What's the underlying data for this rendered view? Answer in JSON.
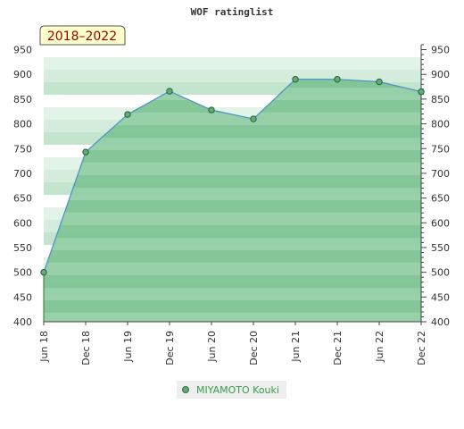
{
  "chart_data": {
    "type": "area",
    "title": "WOF ratinglist",
    "period_badge": "2018–2022",
    "x": [
      "Jun 18",
      "Dec 18",
      "Jun 19",
      "Dec 19",
      "Jun 20",
      "Dec 20",
      "Jun 21",
      "Dec 21",
      "Jun 22",
      "Dec 22"
    ],
    "series": [
      {
        "name": "MIYAMOTO Kouki",
        "values": [
          500,
          743,
          819,
          866,
          828,
          810,
          890,
          890,
          885,
          865
        ]
      }
    ],
    "y_ticks": [
      400,
      450,
      500,
      550,
      600,
      650,
      700,
      750,
      800,
      850,
      900,
      950
    ],
    "ylim": [
      400,
      960
    ],
    "xlabel": "",
    "ylabel": "",
    "grid": true,
    "legend_position": "bottom-center",
    "colors": {
      "area": "#7fc494",
      "line": "#4a90c8",
      "marker": "#5fae73"
    }
  }
}
